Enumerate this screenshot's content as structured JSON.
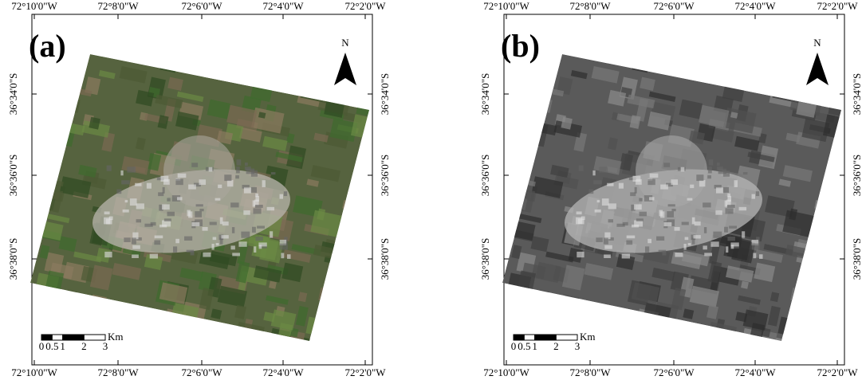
{
  "panels": [
    {
      "label": "(a)",
      "style": "color"
    },
    {
      "label": "(b)",
      "style": "gray"
    }
  ],
  "longitude_labels": [
    "72°10'0\"W",
    "72°8'0\"W",
    "72°6'0\"W",
    "72°4'0\"W",
    "72°2'0\"W"
  ],
  "latitude_labels": [
    "36°34'0\"S",
    "36°36'0\"S",
    "36°38'0\"S"
  ],
  "north": "N",
  "scale_unit": "Km",
  "scale_ticks": [
    0,
    0.5,
    1,
    2,
    3
  ]
}
